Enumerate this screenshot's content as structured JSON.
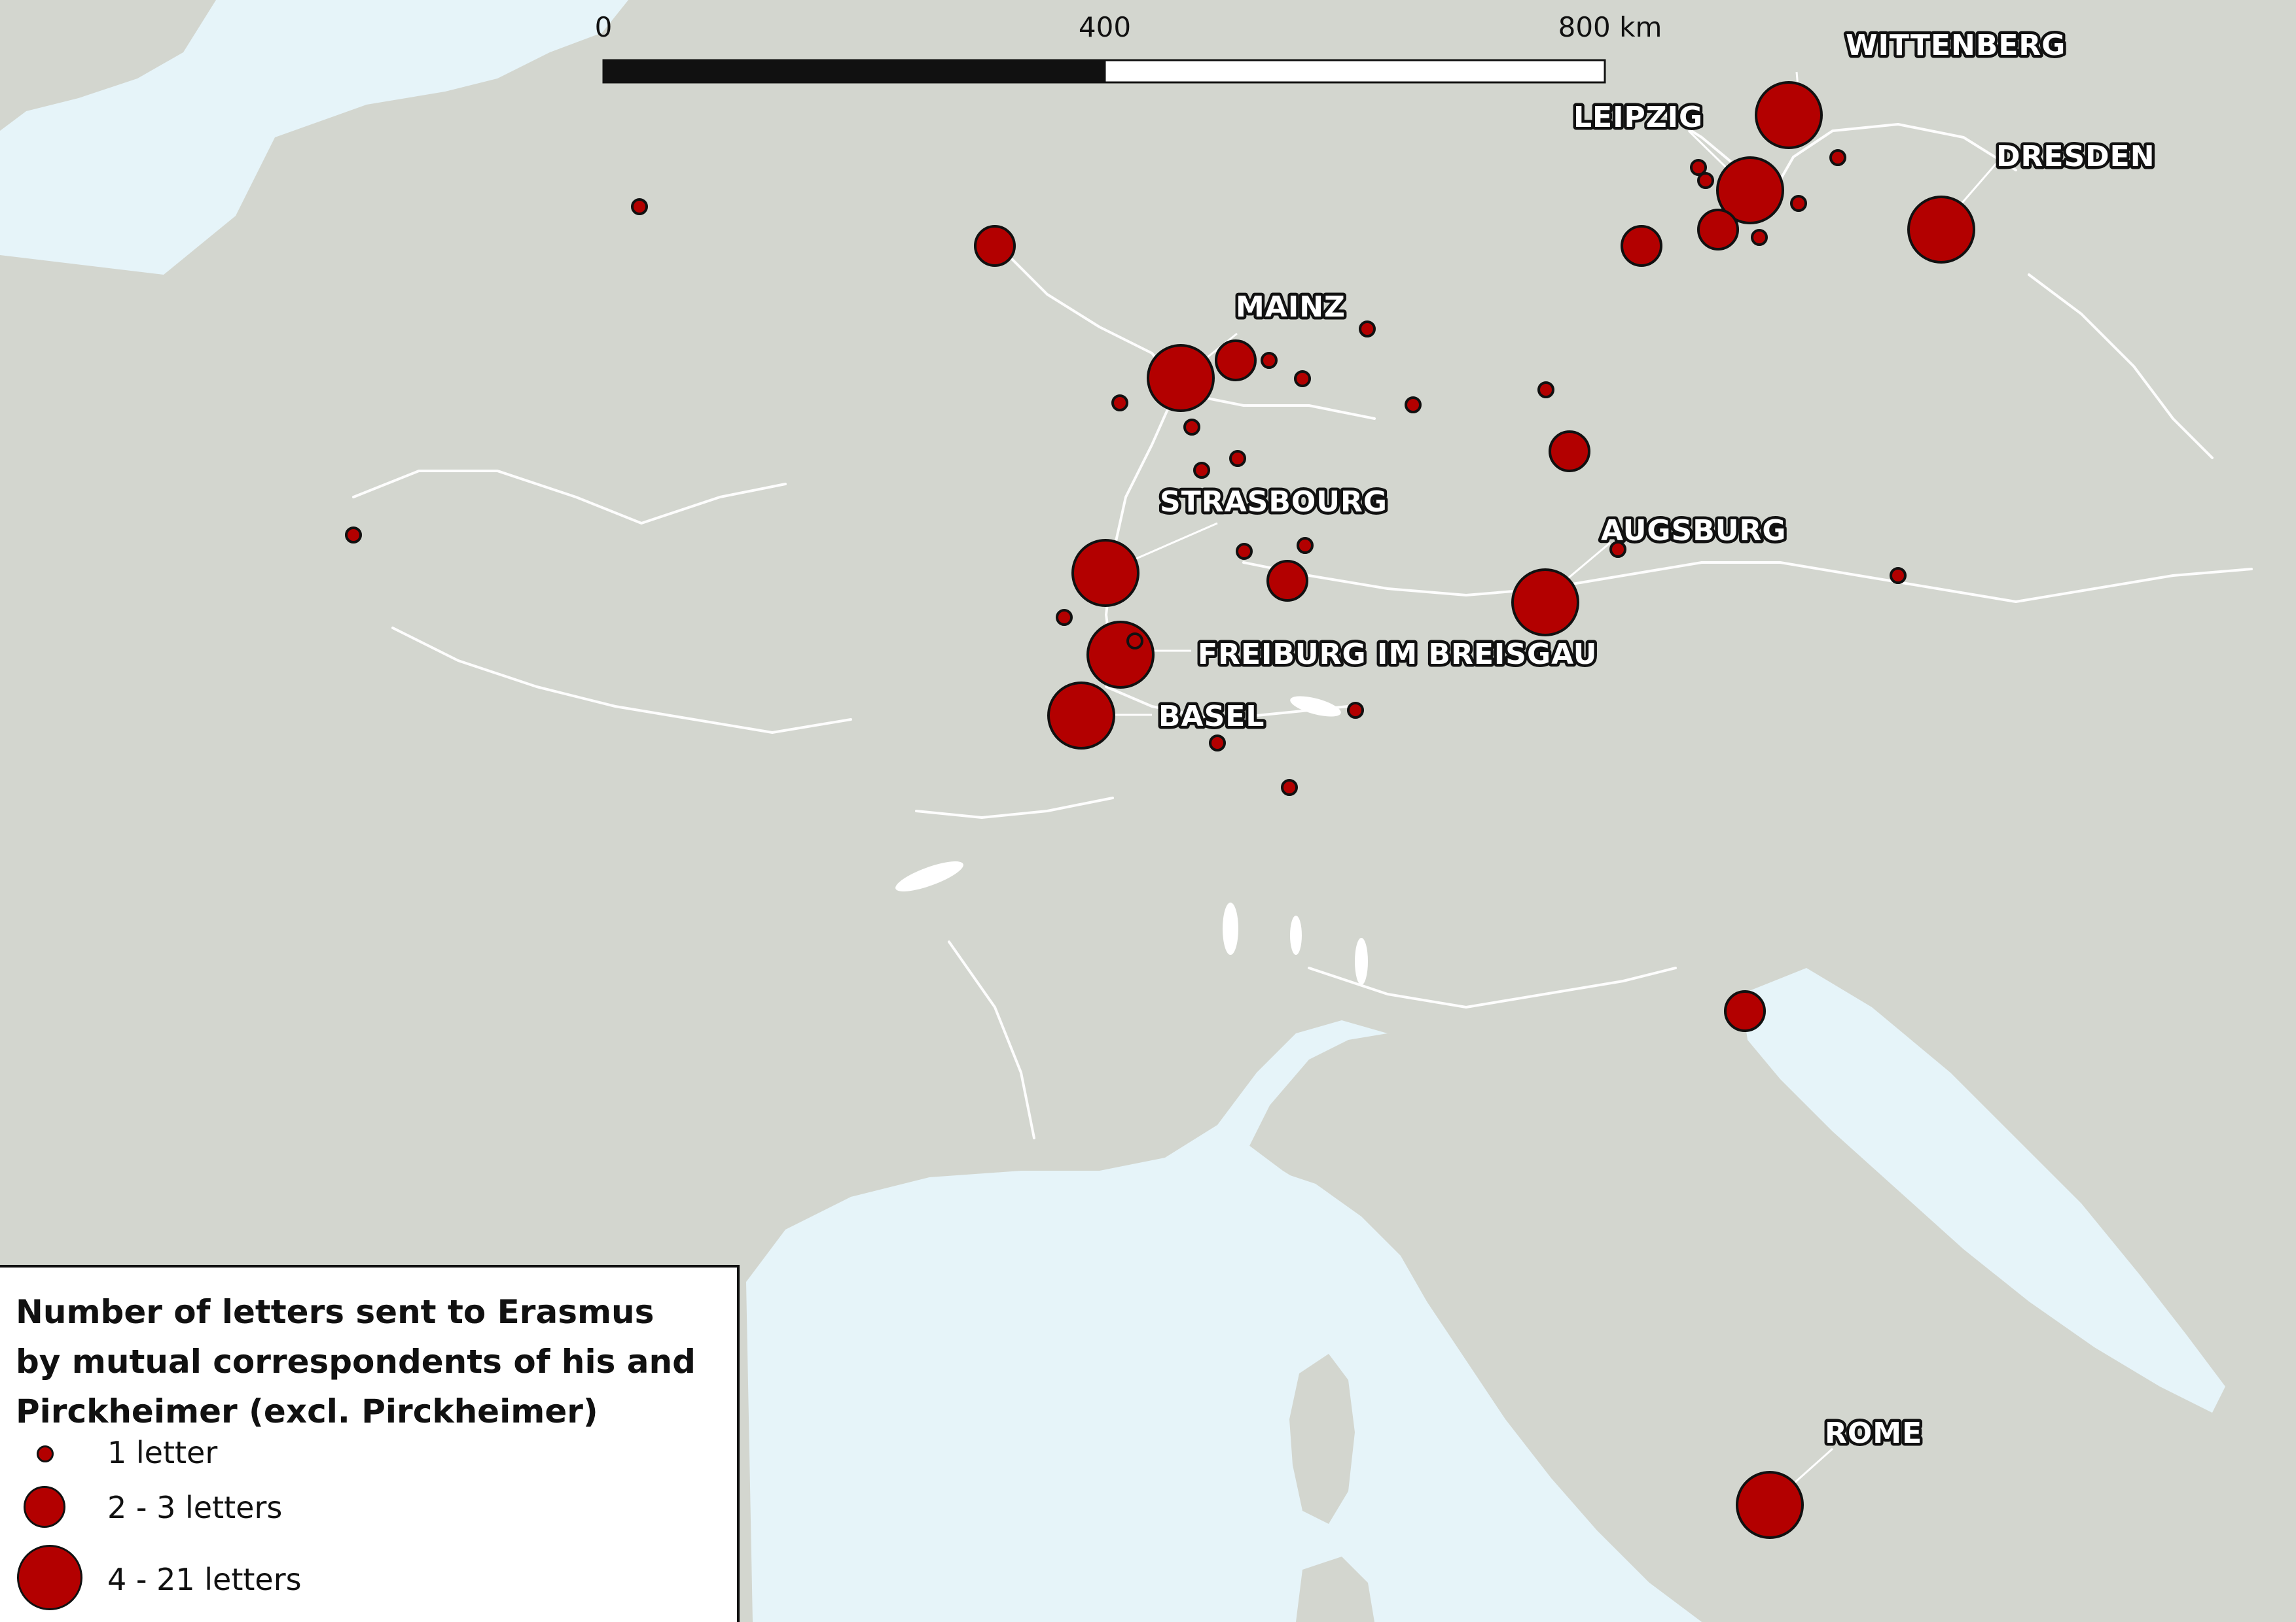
{
  "colors": {
    "sea": "#e6f4f9",
    "land": "#d3d6cf",
    "rivers": "#ffffff",
    "marker": "#b30000",
    "marker_stroke": "#111111"
  },
  "scale_bar": {
    "labels": [
      "0",
      "400",
      "800 km"
    ]
  },
  "cities": [
    {
      "name": "WITTENBERG"
    },
    {
      "name": "LEIPZIG"
    },
    {
      "name": "DRESDEN"
    },
    {
      "name": "MAINZ"
    },
    {
      "name": "STRASBOURG"
    },
    {
      "name": "AUGSBURG"
    },
    {
      "name": "FREIBURG IM BREISGAU"
    },
    {
      "name": "BASEL"
    },
    {
      "name": "ROME"
    }
  ],
  "legend": {
    "title_lines": [
      "Number of letters sent to Erasmus",
      "by mutual correspondents of his and",
      "Pirckheimer (excl. Pirckheimer)"
    ],
    "classes": [
      {
        "label": "1 letter",
        "size": "small"
      },
      {
        "label": "2 - 3 letters",
        "size": "medium"
      },
      {
        "label": "4 - 21 letters",
        "size": "large"
      }
    ]
  }
}
